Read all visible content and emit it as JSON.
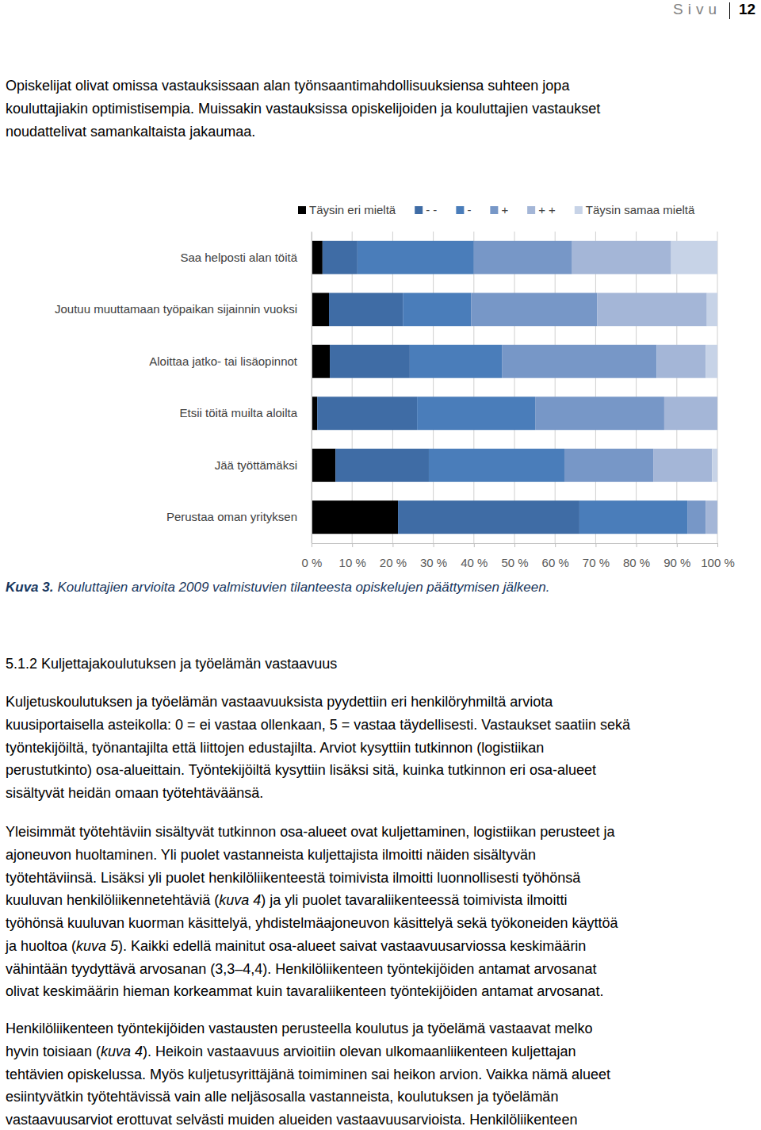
{
  "document": {
    "header": {
      "label": "Sivu",
      "page": "12"
    },
    "intro": {
      "lines": [
        "Opiskelijat olivat omissa vastauksissaan alan työnsaantimahdollisuuksiensa suhteen jopa",
        "kouluttajiakin optimistisempia. Muissakin vastauksissa opiskelijoiden ja kouluttajien vastaukset",
        "noudattelivat samankaltaista jakaumaa."
      ]
    },
    "figure_caption": {
      "label": "Kuva 3.",
      "text": "Kouluttajien arvioita 2009 valmistuvien tilanteesta opiskelujen päättymisen jälkeen."
    },
    "section_heading": "5.1.2 Kuljettajakoulutuksen ja työelämän vastaavuus",
    "paragraphs": [
      {
        "lines": [
          "Kuljetuskoulutuksen ja työelämän vastaavuuksista pyydettiin eri henkilöryhmiltä arviota",
          "kuusiportaisella asteikolla: 0 = ei vastaa ollenkaan, 5 = vastaa täydellisesti. Vastaukset saatiin sekä",
          "työntekijöiltä, työnantajilta että liittojen edustajilta. Arviot kysyttiin tutkinnon (logistiikan",
          "perustutkinto) osa-alueittain. Työntekijöiltä kysyttiin lisäksi sitä, kuinka tutkinnon eri osa-alueet",
          "sisältyvät heidän omaan työtehtäväänsä."
        ]
      },
      {
        "lines": [
          "Yleisimmät työtehtäviin sisältyvät tutkinnon osa-alueet ovat kuljettaminen, logistiikan perusteet ja",
          "ajoneuvon huoltaminen. Yli puolet vastanneista kuljettajista ilmoitti näiden sisältyvän",
          "työtehtäviinsä. Lisäksi yli puolet henkilöliikenteestä toimivista ilmoitti luonnollisesti työhönsä",
          [
            "kuuluvan henkilöliikennetehtäviä (",
            {
              "text": "kuva 4",
              "italic": true
            },
            ") ja yli puolet tavaraliikenteessä toimivista ilmoitti"
          ],
          "työhönsä kuuluvan kuorman käsittelyä, yhdistelmäajoneuvon käsittelyä sekä työkoneiden käyttöä",
          [
            "ja huoltoa (",
            {
              "text": "kuva 5",
              "italic": true
            },
            "). Kaikki edellä mainitut osa-alueet saivat vastaavuusarviossa keskimäärin"
          ],
          "vähintään tyydyttävä arvosanan (3,3–4,4). Henkilöliikenteen työntekijöiden antamat arvosanat",
          "olivat keskimäärin hieman korkeammat kuin tavaraliikenteen työntekijöiden antamat arvosanat."
        ]
      },
      {
        "lines": [
          "Henkilöliikenteen työntekijöiden vastausten perusteella koulutus ja työelämä vastaavat melko",
          [
            "hyvin toisiaan (",
            {
              "text": "kuva 4",
              "italic": true
            },
            "). Heikoin vastaavuus arvioitiin olevan ulkomaanliikenteen kuljettajan"
          ],
          "tehtävien opiskelussa. Myös kuljetusyrittäjänä toimiminen sai heikon arvion. Vaikka nämä alueet",
          "esiintyvätkin työtehtävissä vain alle neljäsosalla vastanneista, koulutuksen ja työelämän",
          "vastaavuusarviot erottuvat selvästi muiden alueiden vastaavuusarvioista.  Henkilöliikenteen"
        ]
      }
    ]
  },
  "chart_data": {
    "type": "bar",
    "orientation": "horizontal",
    "stacked": true,
    "grid": true,
    "legend": "top",
    "categories": [
      "Saa helposti alan töitä",
      "Joutuu muuttamaan työpaikan sijainnin vuoksi",
      "Aloittaa jatko- tai lisäopinnot",
      "Etsii töitä muilta aloilta",
      "Jää työttämäksi",
      "Perustaa oman yrityksen"
    ],
    "series": [
      {
        "name": "Täysin eri mieltä",
        "color": "#000000",
        "values": [
          2.7,
          4.3,
          4.5,
          1.4,
          5.9,
          21.3
        ]
      },
      {
        "name": "- -",
        "color": "#3f6ca5",
        "values": [
          8.6,
          18.2,
          19.7,
          24.6,
          23.0,
          44.7
        ]
      },
      {
        "name": "-",
        "color": "#4a7dba",
        "values": [
          28.7,
          16.8,
          22.7,
          29.1,
          33.4,
          26.6
        ]
      },
      {
        "name": "+",
        "color": "#7797c7",
        "values": [
          24.2,
          31.1,
          38.1,
          31.8,
          21.9,
          4.5
        ]
      },
      {
        "name": "+ +",
        "color": "#a4b6d7",
        "values": [
          24.4,
          27.0,
          12.1,
          13.1,
          14.5,
          2.9
        ]
      },
      {
        "name": "Täysin samaa mieltä",
        "color": "#c7d3e7",
        "values": [
          11.4,
          2.6,
          2.9,
          0,
          1.3,
          0
        ]
      }
    ],
    "xlim": [
      0,
      100
    ],
    "xticks": [
      {
        "value": 0,
        "label": "0 %"
      },
      {
        "value": 10,
        "label": "10 %"
      },
      {
        "value": 20,
        "label": "20 %"
      },
      {
        "value": 30,
        "label": "30 %"
      },
      {
        "value": 40,
        "label": "40 %"
      },
      {
        "value": 50,
        "label": "50 %"
      },
      {
        "value": 60,
        "label": "60 %"
      },
      {
        "value": 70,
        "label": "70 %"
      },
      {
        "value": 80,
        "label": "80 %"
      },
      {
        "value": 90,
        "label": "90 %"
      },
      {
        "value": 100,
        "label": "100 %"
      }
    ]
  }
}
